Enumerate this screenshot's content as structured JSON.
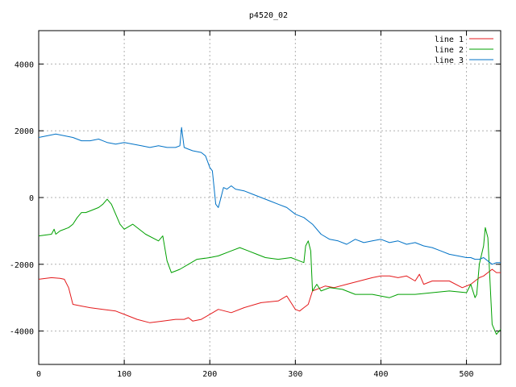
{
  "chart_data": {
    "type": "line",
    "title": "p4520_02",
    "xlabel": "",
    "ylabel": "",
    "xlim": [
      0,
      540
    ],
    "ylim": [
      -5000,
      5000
    ],
    "xticks": [
      0,
      100,
      200,
      300,
      400,
      500
    ],
    "yticks": [
      -4000,
      -2000,
      0,
      2000,
      4000
    ],
    "grid": true,
    "legend_position": "top-right",
    "series": [
      {
        "name": "line 1",
        "color": "#e41a1c",
        "x": [
          0,
          15,
          25,
          30,
          35,
          40,
          50,
          60,
          75,
          90,
          100,
          115,
          130,
          145,
          160,
          170,
          175,
          180,
          190,
          200,
          210,
          225,
          240,
          260,
          280,
          290,
          300,
          305,
          310,
          315,
          320,
          330,
          335,
          345,
          360,
          375,
          390,
          400,
          410,
          420,
          430,
          440,
          445,
          450,
          460,
          480,
          495,
          505,
          515,
          520,
          525,
          530,
          535,
          540
        ],
        "y": [
          -2450,
          -2400,
          -2420,
          -2450,
          -2700,
          -3200,
          -3250,
          -3300,
          -3350,
          -3400,
          -3500,
          -3650,
          -3750,
          -3700,
          -3650,
          -3650,
          -3600,
          -3700,
          -3650,
          -3500,
          -3350,
          -3450,
          -3300,
          -3150,
          -3100,
          -2950,
          -3350,
          -3400,
          -3300,
          -3200,
          -2800,
          -2700,
          -2650,
          -2700,
          -2600,
          -2500,
          -2400,
          -2350,
          -2350,
          -2400,
          -2350,
          -2500,
          -2300,
          -2600,
          -2500,
          -2500,
          -2700,
          -2600,
          -2400,
          -2350,
          -2250,
          -2150,
          -2250,
          -2250
        ]
      },
      {
        "name": "line 2",
        "color": "#00a000",
        "x": [
          0,
          15,
          18,
          20,
          25,
          35,
          40,
          45,
          50,
          55,
          60,
          70,
          75,
          80,
          85,
          95,
          100,
          110,
          125,
          140,
          145,
          150,
          155,
          160,
          165,
          175,
          185,
          200,
          210,
          225,
          235,
          245,
          255,
          265,
          280,
          295,
          305,
          310,
          312,
          315,
          318,
          320,
          325,
          330,
          340,
          355,
          370,
          390,
          410,
          420,
          440,
          460,
          480,
          500,
          505,
          510,
          512,
          515,
          520,
          522,
          525,
          530,
          535,
          540
        ],
        "y": [
          -1150,
          -1100,
          -950,
          -1100,
          -1000,
          -900,
          -800,
          -600,
          -450,
          -450,
          -400,
          -300,
          -200,
          -50,
          -200,
          -800,
          -950,
          -800,
          -1100,
          -1300,
          -1150,
          -1900,
          -2250,
          -2200,
          -2150,
          -2000,
          -1850,
          -1800,
          -1750,
          -1600,
          -1500,
          -1600,
          -1700,
          -1800,
          -1850,
          -1800,
          -1900,
          -1950,
          -1450,
          -1300,
          -1600,
          -2800,
          -2600,
          -2800,
          -2700,
          -2750,
          -2900,
          -2900,
          -3000,
          -2900,
          -2900,
          -2850,
          -2800,
          -2850,
          -2600,
          -3000,
          -2900,
          -2000,
          -1450,
          -900,
          -1200,
          -3800,
          -4100,
          -3950
        ]
      },
      {
        "name": "line 3",
        "color": "#0072c6",
        "x": [
          0,
          10,
          20,
          30,
          40,
          50,
          60,
          70,
          80,
          90,
          100,
          110,
          120,
          130,
          140,
          150,
          160,
          165,
          167,
          170,
          175,
          180,
          190,
          195,
          200,
          203,
          205,
          207,
          210,
          212,
          214,
          216,
          220,
          225,
          230,
          240,
          250,
          260,
          270,
          280,
          290,
          300,
          310,
          320,
          330,
          340,
          350,
          360,
          370,
          380,
          390,
          400,
          410,
          420,
          430,
          440,
          450,
          460,
          470,
          480,
          490,
          500,
          505,
          510,
          515,
          520,
          525,
          530,
          535,
          540
        ],
        "y": [
          1800,
          1850,
          1900,
          1850,
          1800,
          1700,
          1700,
          1750,
          1650,
          1600,
          1650,
          1600,
          1550,
          1500,
          1550,
          1500,
          1500,
          1550,
          2100,
          1500,
          1450,
          1400,
          1350,
          1250,
          900,
          800,
          300,
          -200,
          -300,
          -100,
          100,
          300,
          250,
          350,
          250,
          200,
          100,
          0,
          -100,
          -200,
          -300,
          -500,
          -600,
          -800,
          -1100,
          -1250,
          -1300,
          -1400,
          -1250,
          -1350,
          -1300,
          -1250,
          -1350,
          -1300,
          -1400,
          -1350,
          -1450,
          -1500,
          -1600,
          -1700,
          -1750,
          -1800,
          -1800,
          -1850,
          -1850,
          -1800,
          -1900,
          -2000,
          -1950,
          -1950
        ]
      }
    ]
  }
}
